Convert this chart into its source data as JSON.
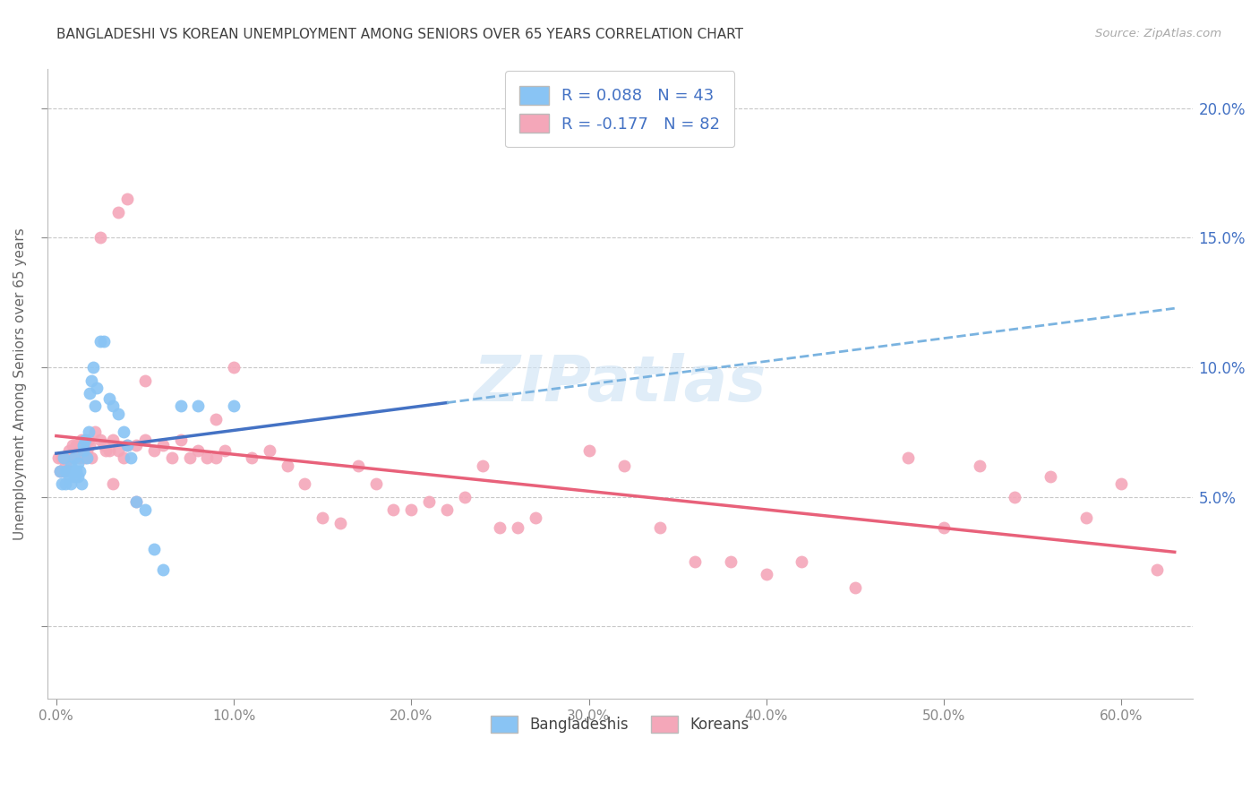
{
  "title": "BANGLADESHI VS KOREAN UNEMPLOYMENT AMONG SENIORS OVER 65 YEARS CORRELATION CHART",
  "source": "Source: ZipAtlas.com",
  "ylabel_label": "Unemployment Among Seniors over 65 years",
  "x_ticks": [
    0.0,
    0.1,
    0.2,
    0.3,
    0.4,
    0.5,
    0.6
  ],
  "x_tick_labels": [
    "0.0%",
    "10.0%",
    "20.0%",
    "30.0%",
    "40.0%",
    "50.0%",
    "60.0%"
  ],
  "y_ticks": [
    0.0,
    0.05,
    0.1,
    0.15,
    0.2
  ],
  "y_tick_labels": [
    "",
    "5.0%",
    "10.0%",
    "15.0%",
    "20.0%"
  ],
  "xlim": [
    -0.005,
    0.64
  ],
  "ylim": [
    -0.028,
    0.215
  ],
  "bangladeshi_color": "#89c4f4",
  "korean_color": "#f4a7b9",
  "trend_blue_solid_color": "#4472c4",
  "trend_pink_solid_color": "#e8617a",
  "trend_blue_dashed_color": "#7ab3e0",
  "background_color": "#ffffff",
  "grid_color": "#c8c8c8",
  "title_color": "#404040",
  "right_ytick_color": "#4472c4",
  "legend1_label": "R = 0.088   N = 43",
  "legend2_label": "R = -0.177   N = 82",
  "legend_text_color": "#4472c4",
  "watermark": "ZIPatlas",
  "watermark_color": "#d0e4f5",
  "bangladeshi_x": [
    0.002,
    0.003,
    0.004,
    0.005,
    0.005,
    0.006,
    0.007,
    0.007,
    0.008,
    0.008,
    0.009,
    0.01,
    0.01,
    0.011,
    0.012,
    0.012,
    0.013,
    0.014,
    0.015,
    0.015,
    0.016,
    0.017,
    0.018,
    0.019,
    0.02,
    0.021,
    0.022,
    0.023,
    0.025,
    0.027,
    0.03,
    0.032,
    0.035,
    0.038,
    0.04,
    0.042,
    0.045,
    0.05,
    0.055,
    0.06,
    0.07,
    0.08,
    0.1
  ],
  "bangladeshi_y": [
    0.06,
    0.055,
    0.065,
    0.06,
    0.055,
    0.06,
    0.06,
    0.058,
    0.062,
    0.055,
    0.06,
    0.058,
    0.065,
    0.06,
    0.058,
    0.063,
    0.06,
    0.055,
    0.07,
    0.068,
    0.072,
    0.065,
    0.075,
    0.09,
    0.095,
    0.1,
    0.085,
    0.092,
    0.11,
    0.11,
    0.088,
    0.085,
    0.082,
    0.075,
    0.07,
    0.065,
    0.048,
    0.045,
    0.03,
    0.022,
    0.085,
    0.085,
    0.085
  ],
  "korean_x": [
    0.001,
    0.002,
    0.003,
    0.004,
    0.005,
    0.005,
    0.006,
    0.007,
    0.008,
    0.009,
    0.01,
    0.011,
    0.012,
    0.013,
    0.014,
    0.015,
    0.016,
    0.017,
    0.018,
    0.019,
    0.02,
    0.022,
    0.025,
    0.027,
    0.03,
    0.032,
    0.035,
    0.038,
    0.04,
    0.045,
    0.05,
    0.055,
    0.06,
    0.065,
    0.07,
    0.075,
    0.08,
    0.085,
    0.09,
    0.095,
    0.1,
    0.11,
    0.12,
    0.13,
    0.14,
    0.15,
    0.16,
    0.17,
    0.18,
    0.19,
    0.2,
    0.21,
    0.22,
    0.23,
    0.24,
    0.25,
    0.26,
    0.27,
    0.3,
    0.32,
    0.34,
    0.36,
    0.38,
    0.4,
    0.42,
    0.45,
    0.48,
    0.5,
    0.52,
    0.54,
    0.56,
    0.58,
    0.6,
    0.62,
    0.09,
    0.04,
    0.05,
    0.035,
    0.025,
    0.028,
    0.032,
    0.045
  ],
  "korean_y": [
    0.065,
    0.06,
    0.065,
    0.06,
    0.065,
    0.062,
    0.065,
    0.068,
    0.065,
    0.07,
    0.065,
    0.07,
    0.068,
    0.065,
    0.072,
    0.07,
    0.065,
    0.068,
    0.072,
    0.07,
    0.065,
    0.075,
    0.072,
    0.07,
    0.068,
    0.072,
    0.068,
    0.065,
    0.07,
    0.07,
    0.072,
    0.068,
    0.07,
    0.065,
    0.072,
    0.065,
    0.068,
    0.065,
    0.065,
    0.068,
    0.1,
    0.065,
    0.068,
    0.062,
    0.055,
    0.042,
    0.04,
    0.062,
    0.055,
    0.045,
    0.045,
    0.048,
    0.045,
    0.05,
    0.062,
    0.038,
    0.038,
    0.042,
    0.068,
    0.062,
    0.038,
    0.025,
    0.025,
    0.02,
    0.025,
    0.015,
    0.065,
    0.038,
    0.062,
    0.05,
    0.058,
    0.042,
    0.055,
    0.022,
    0.08,
    0.165,
    0.095,
    0.16,
    0.15,
    0.068,
    0.055,
    0.048
  ]
}
